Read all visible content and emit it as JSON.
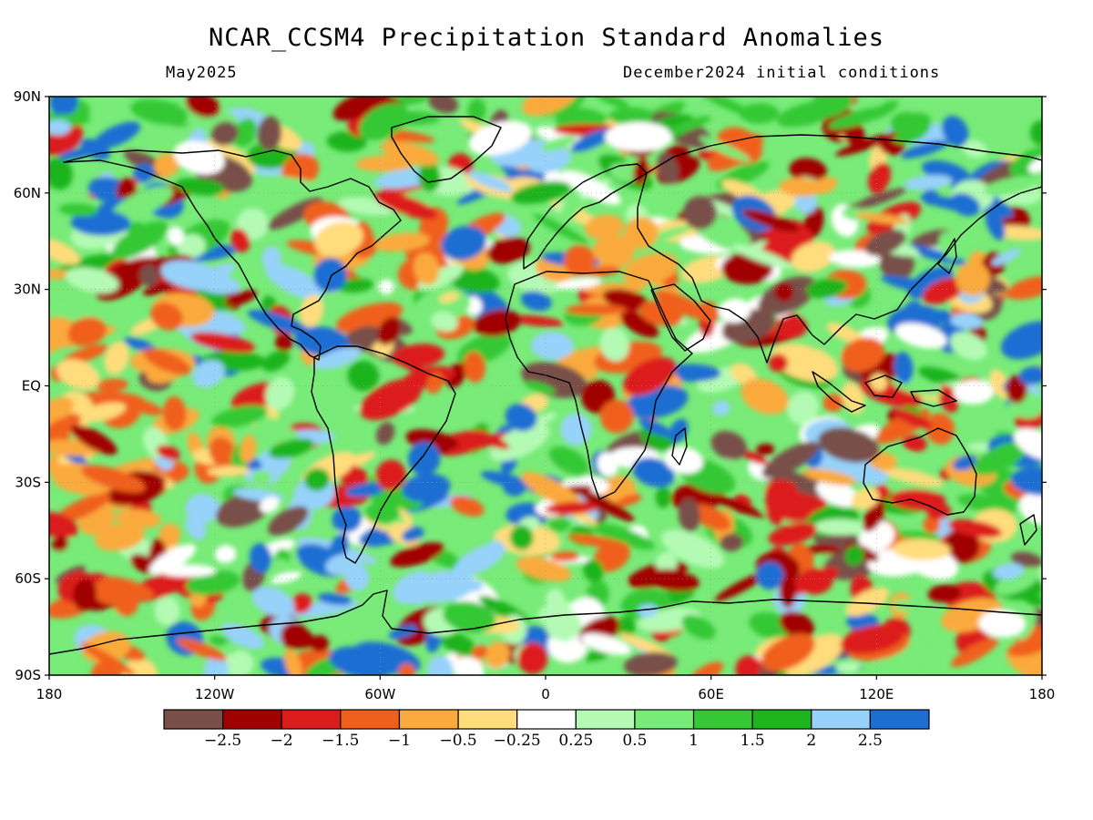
{
  "title": "NCAR_CCSM4 Precipitation Standard Anomalies",
  "subtitle_left": "May2025",
  "subtitle_right": "December2024 initial conditions",
  "lat_ticks": [
    "90N",
    "60N",
    "30N",
    "EQ",
    "30S",
    "60S",
    "90S"
  ],
  "lat_values": [
    90,
    60,
    30,
    0,
    -30,
    -60,
    -90
  ],
  "lon_ticks": [
    "180",
    "120W",
    "60W",
    "0",
    "60E",
    "120E",
    "180"
  ],
  "lon_values": [
    -180,
    -120,
    -60,
    0,
    60,
    120,
    180
  ],
  "colorbar": {
    "colors": [
      "#785048",
      "#a00000",
      "#dc1c1c",
      "#f0601c",
      "#faaa3c",
      "#ffdc7c",
      "#ffffff",
      "#b4fab4",
      "#78eb78",
      "#36c836",
      "#1eb41e",
      "#96d2fa",
      "#1e6ed2"
    ],
    "labels": [
      "−2.5",
      "−2",
      "−1.5",
      "−1",
      "−0.5",
      "−0.25",
      "0.25",
      "0.5",
      "1",
      "1.5",
      "2",
      "2.5"
    ]
  }
}
